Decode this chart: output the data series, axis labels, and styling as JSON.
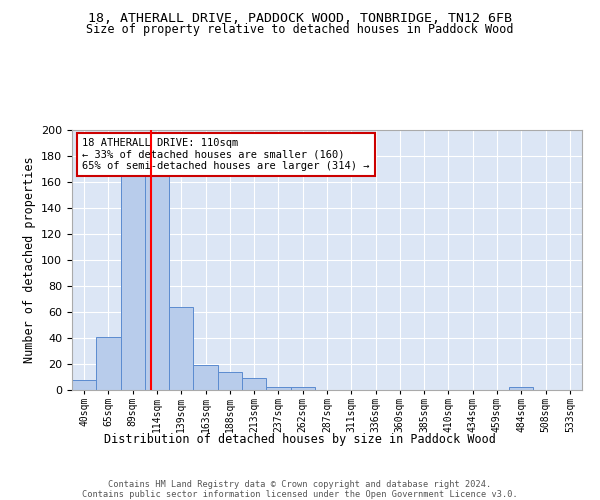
{
  "title": "18, ATHERALL DRIVE, PADDOCK WOOD, TONBRIDGE, TN12 6FB",
  "subtitle": "Size of property relative to detached houses in Paddock Wood",
  "xlabel": "Distribution of detached houses by size in Paddock Wood",
  "ylabel": "Number of detached properties",
  "bar_values": [
    8,
    41,
    165,
    165,
    64,
    19,
    14,
    9,
    2,
    2,
    0,
    0,
    0,
    0,
    0,
    0,
    0,
    0,
    2,
    0,
    0
  ],
  "bar_labels": [
    "40sqm",
    "65sqm",
    "89sqm",
    "114sqm",
    "139sqm",
    "163sqm",
    "188sqm",
    "213sqm",
    "237sqm",
    "262sqm",
    "287sqm",
    "311sqm",
    "336sqm",
    "360sqm",
    "385sqm",
    "410sqm",
    "434sqm",
    "459sqm",
    "484sqm",
    "508sqm",
    "533sqm"
  ],
  "bar_color": "#b8cceb",
  "bar_edge_color": "#5b8bd0",
  "background_color": "#dce6f5",
  "grid_color": "#ffffff",
  "red_line_x": 2.75,
  "annotation_text": "18 ATHERALL DRIVE: 110sqm\n← 33% of detached houses are smaller (160)\n65% of semi-detached houses are larger (314) →",
  "annotation_box_color": "#ffffff",
  "annotation_box_edge": "#cc0000",
  "ylim": [
    0,
    200
  ],
  "yticks": [
    0,
    20,
    40,
    60,
    80,
    100,
    120,
    140,
    160,
    180,
    200
  ],
  "footer_line1": "Contains HM Land Registry data © Crown copyright and database right 2024.",
  "footer_line2": "Contains public sector information licensed under the Open Government Licence v3.0."
}
